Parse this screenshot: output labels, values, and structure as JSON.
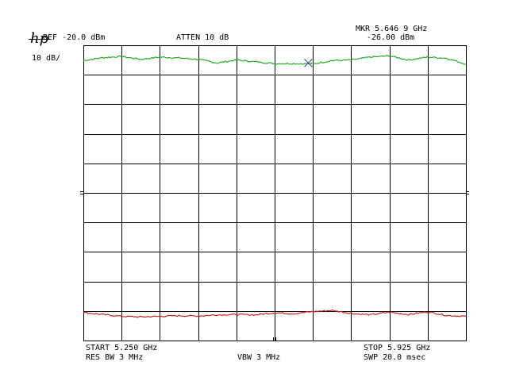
{
  "header": {
    "logo": "hp",
    "ref": "REF -20.0 dBm",
    "atten": "ATTEN 10 dB",
    "marker_freq": "MKR 5.646 9 GHz",
    "marker_level": "-26.00 dBm",
    "scale": "10 dB/"
  },
  "footer": {
    "start": "START 5.250 GHz",
    "res_bw": "RES BW 3 MHz",
    "vbw": "VBW 3 MHz",
    "stop": "STOP 5.925 GHz",
    "sweep": "SWP 20.0 msec"
  },
  "colors": {
    "grid": "#000000",
    "trace_a": "#22aa22",
    "trace_b": "#cc2222",
    "marker": "#2233aa"
  },
  "chart_data": {
    "type": "line",
    "x_unit": "GHz",
    "y_unit": "dBm",
    "xlim": [
      5.25,
      5.925
    ],
    "ylim": [
      -120,
      -20
    ],
    "grid": true,
    "divisions": {
      "x": 10,
      "y": 10
    },
    "series": [
      {
        "color": "#22aa22",
        "x": [
          5.25,
          5.2837,
          5.3175,
          5.3512,
          5.385,
          5.4187,
          5.4525,
          5.4863,
          5.52,
          5.5537,
          5.5875,
          5.6212,
          5.655,
          5.6888,
          5.7225,
          5.7563,
          5.79,
          5.8237,
          5.8575,
          5.8913,
          5.925
        ],
        "y": [
          -25.2,
          -24.2,
          -23.8,
          -24.8,
          -24.0,
          -24.3,
          -24.8,
          -26.0,
          -25.0,
          -25.6,
          -26.2,
          -26.2,
          -26.3,
          -25.2,
          -25.0,
          -24.0,
          -23.6,
          -25.0,
          -24.0,
          -24.4,
          -26.4
        ]
      },
      {
        "color": "#cc2222",
        "x": [
          5.25,
          5.2837,
          5.3175,
          5.3512,
          5.385,
          5.4187,
          5.4525,
          5.4863,
          5.52,
          5.5537,
          5.5875,
          5.6212,
          5.655,
          5.6888,
          5.7225,
          5.7563,
          5.79,
          5.8237,
          5.8575,
          5.8913,
          5.925
        ],
        "y": [
          -110.5,
          -111.2,
          -111.8,
          -112.0,
          -111.8,
          -111.6,
          -111.7,
          -111.3,
          -111.2,
          -111.3,
          -110.6,
          -110.9,
          -110.2,
          -109.8,
          -110.8,
          -111.3,
          -110.4,
          -111.2,
          -110.3,
          -111.5,
          -111.8
        ]
      }
    ],
    "marker": {
      "x": 5.6469,
      "y": -26.0
    }
  }
}
